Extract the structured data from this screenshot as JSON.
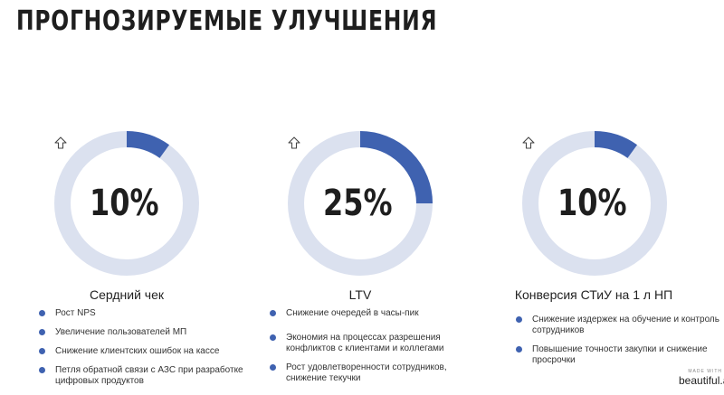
{
  "title": "ПРОГНОЗИРУЕМЫЕ УЛУЧШЕНИЯ",
  "accent_color": "#3f62b0",
  "track_color": "#dbe1ef",
  "metrics": [
    {
      "value": "10%",
      "progress": 0.1,
      "icon": "arrow-up-icon",
      "label": "Сердний чек",
      "points": [
        "Рост NPS",
        "Увеличение пользователей МП",
        "Снижение клиентских ошибок на кассе",
        "Петля обратной связи с АЗС при разработке цифровых продуктов"
      ]
    },
    {
      "value": "25%",
      "progress": 0.25,
      "icon": "arrow-up-icon",
      "label": "LTV",
      "points": [
        "Снижение очередей в часы-пик",
        "Экономия на процессах разрешения конфликтов с клиентами и коллегами",
        "Рост удовлетворенности сотрудников, снижение текучки"
      ]
    },
    {
      "value": "10%",
      "progress": 0.1,
      "icon": "arrow-up-icon",
      "label": "Конверсия СТиУ на 1 л НП",
      "points": [
        "Снижение издержек на обучение и контроль сотрудников",
        "Повышение точности закупки и снижение просрочки"
      ]
    }
  ],
  "branding": {
    "made_with": "MADE WITH",
    "name": "beautiful.ai"
  }
}
